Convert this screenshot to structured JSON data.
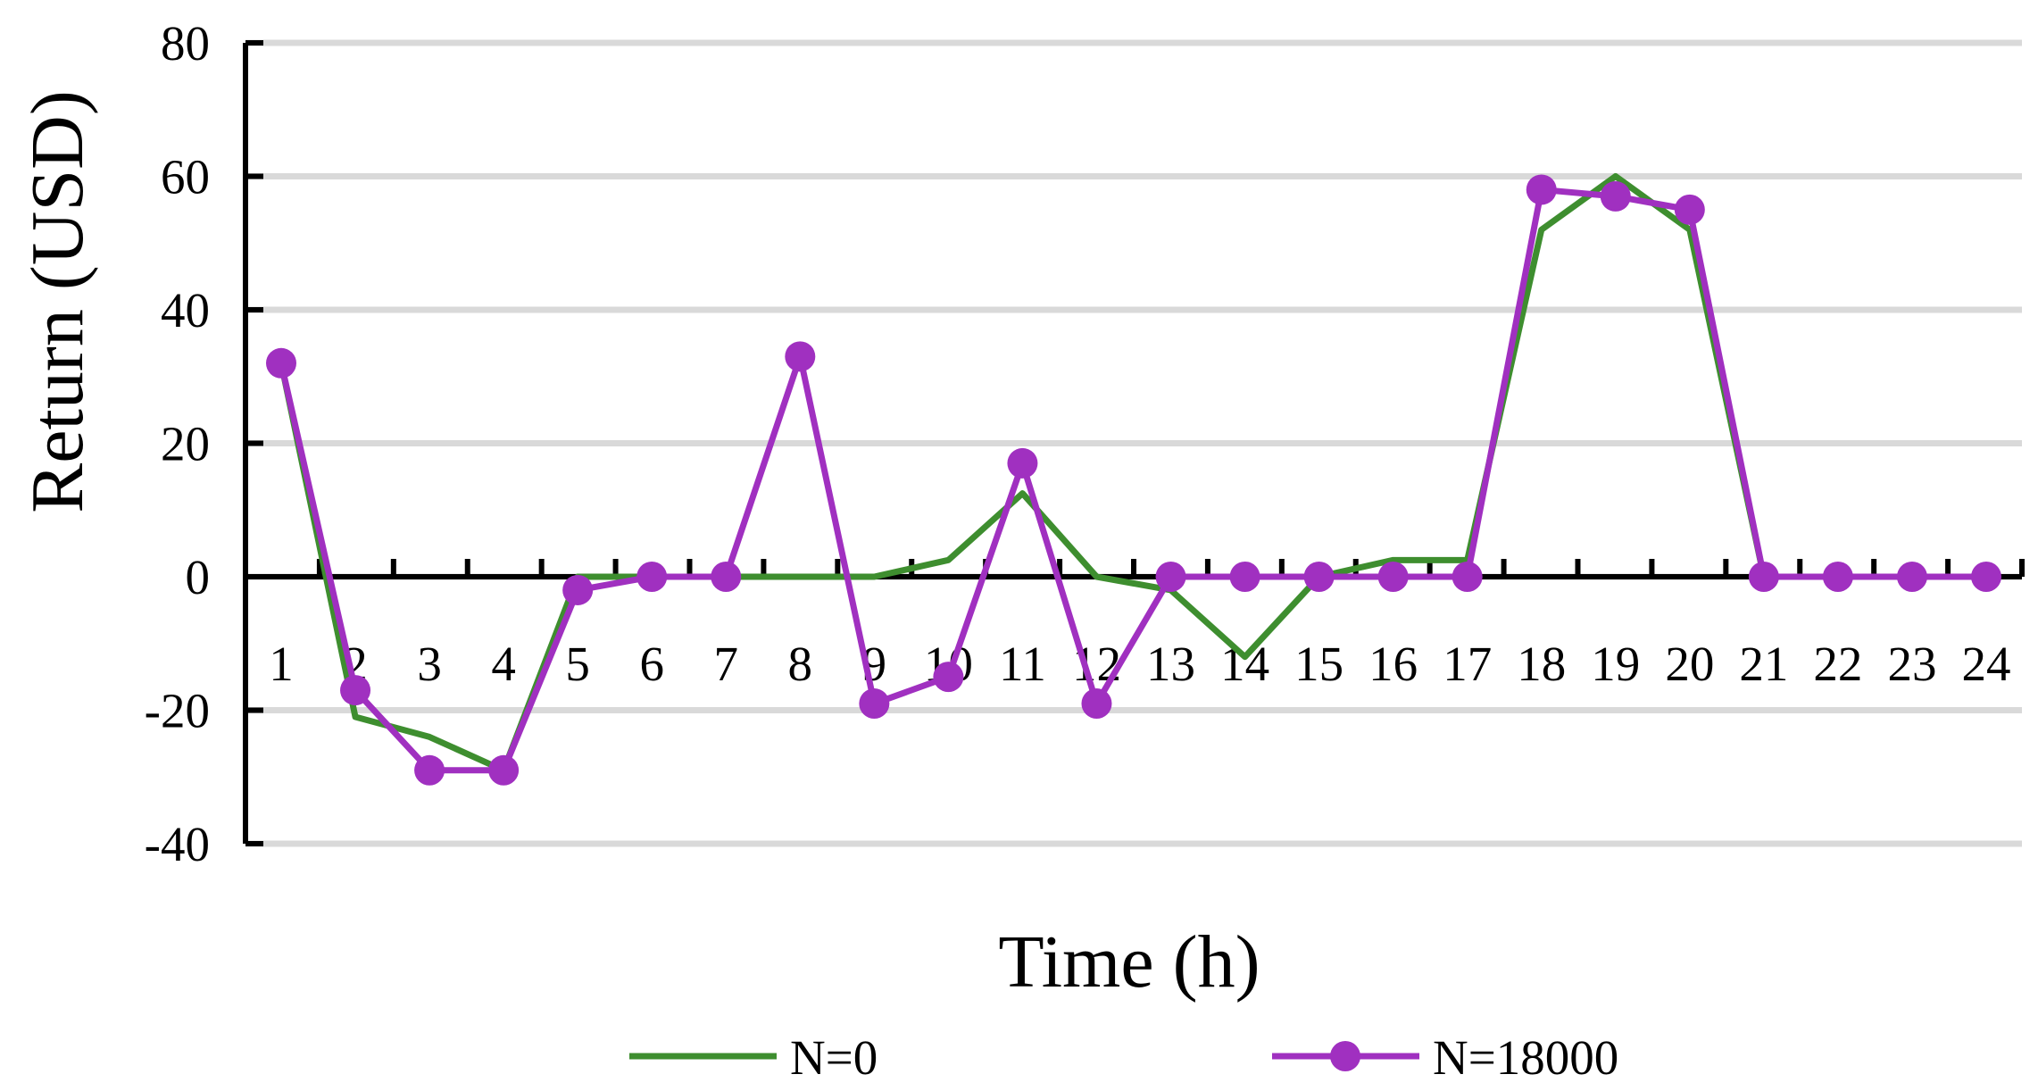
{
  "chart_data": {
    "type": "line",
    "title": "",
    "xlabel": "Time (h)",
    "ylabel": "Return (USD)",
    "ylim": [
      -40,
      80
    ],
    "yticks": [
      -40,
      -20,
      0,
      20,
      40,
      60,
      80
    ],
    "y_tick_labels": [
      "-40",
      "-20",
      "0",
      "20",
      "40",
      "60",
      "80"
    ],
    "categories": [
      "1",
      "2",
      "3",
      "4",
      "5",
      "6",
      "7",
      "8",
      "9",
      "10",
      "11",
      "12",
      "13",
      "14",
      "15",
      "16",
      "17",
      "18",
      "19",
      "20",
      "21",
      "22",
      "23",
      "24"
    ],
    "grid": "horizontal",
    "legend_position": "bottom",
    "series": [
      {
        "name": "N=0",
        "color": "#3e8e2f",
        "marker": "none",
        "values": [
          32,
          -21,
          -24,
          -29,
          0,
          0,
          0,
          0,
          0,
          2.5,
          12.5,
          0,
          -2,
          -12,
          0,
          2.5,
          2.5,
          52,
          60,
          52,
          0,
          0,
          0,
          0
        ]
      },
      {
        "name": "N=18000",
        "color": "#a030c0",
        "marker": "circle",
        "values": [
          32,
          -17,
          -29,
          -29,
          -2,
          0,
          0,
          33,
          -19,
          -15,
          17,
          -19,
          0,
          0,
          0,
          0,
          0,
          58,
          57,
          55,
          0,
          0,
          0,
          0
        ]
      }
    ]
  }
}
